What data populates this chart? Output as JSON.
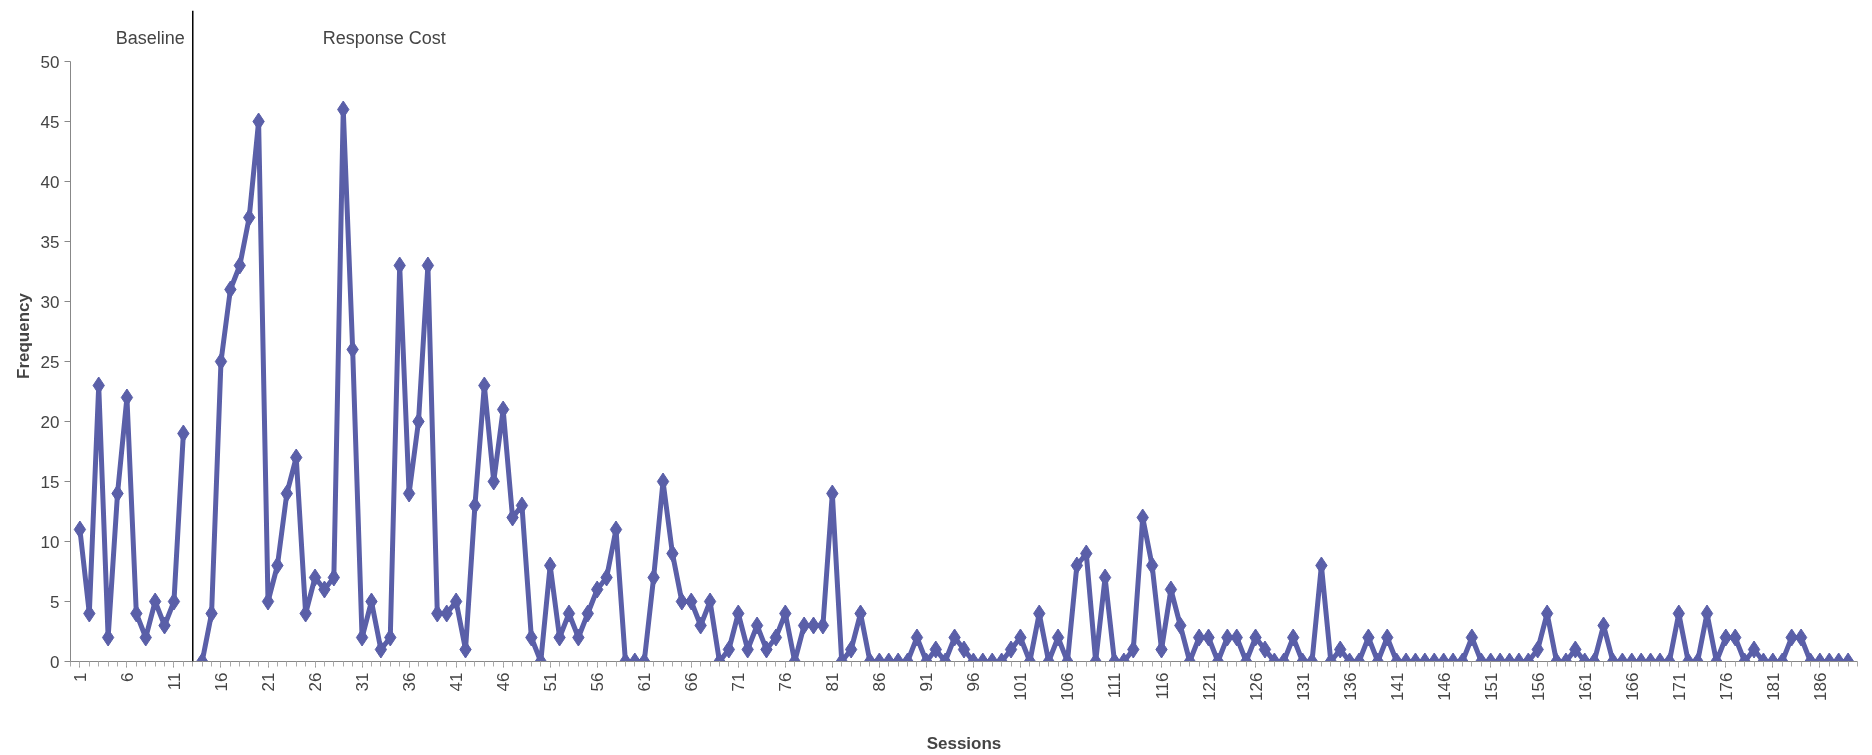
{
  "chart_data": {
    "type": "line",
    "xlabel": "Sessions",
    "ylabel": "Frequency",
    "annotations": [
      "Baseline",
      "Response Cost"
    ],
    "ref_lines": [
      {
        "axis": "x",
        "value": 13,
        "color": "#000000"
      }
    ],
    "xlim": [
      0,
      190
    ],
    "xticks": [
      1,
      6,
      11,
      16,
      21,
      26,
      31,
      36,
      41,
      46,
      51,
      56,
      61,
      66,
      71,
      76,
      81,
      86,
      91,
      96,
      101,
      106,
      111,
      116,
      121,
      126,
      131,
      136,
      141,
      146,
      151,
      156,
      161,
      166,
      171,
      176,
      181,
      186
    ],
    "ylim": [
      0,
      50
    ],
    "yticks": [
      0,
      5,
      10,
      15,
      20,
      25,
      30,
      35,
      40,
      45,
      50
    ],
    "grid": false,
    "marker": "diamond",
    "line_style": "solid",
    "x": [
      1,
      2,
      3,
      4,
      5,
      6,
      7,
      8,
      9,
      10,
      11,
      12,
      13,
      14,
      15,
      16,
      17,
      18,
      19,
      20,
      21,
      22,
      23,
      24,
      25,
      26,
      27,
      28,
      29,
      30,
      31,
      32,
      33,
      34,
      35,
      36,
      37,
      38,
      39,
      40,
      41,
      42,
      43,
      44,
      45,
      46,
      47,
      48,
      49,
      50,
      51,
      52,
      53,
      54,
      55,
      56,
      57,
      58,
      59,
      60,
      61,
      62,
      63,
      64,
      65,
      66,
      67,
      68,
      69,
      70,
      71,
      72,
      73,
      74,
      75,
      76,
      77,
      78,
      79,
      80,
      81,
      82,
      83,
      84,
      85,
      86,
      87,
      88,
      89,
      90,
      91,
      92,
      93,
      94,
      95,
      96,
      97,
      98,
      99,
      100,
      101,
      102,
      103,
      104,
      105,
      106,
      107,
      108,
      109,
      110,
      111,
      112,
      113,
      114,
      115,
      116,
      117,
      118,
      119,
      120,
      121,
      122,
      123,
      124,
      125,
      126,
      127,
      128,
      129,
      130,
      131,
      132,
      133,
      134,
      135,
      136,
      137,
      138,
      139,
      140,
      141,
      142,
      143,
      144,
      145,
      146,
      147,
      148,
      149,
      150,
      151,
      152,
      153,
      154,
      155,
      156,
      157,
      158,
      159,
      160,
      161,
      162,
      163,
      164,
      165,
      166,
      167,
      168,
      169,
      170,
      171,
      172,
      173,
      174,
      175,
      176,
      177,
      178,
      179,
      180,
      181,
      182,
      183,
      184,
      185,
      186,
      187,
      188,
      189
    ],
    "series": [
      {
        "color": "#5a5fa8",
        "values": [
          11,
          4,
          23,
          2,
          14,
          22,
          4,
          2,
          5,
          3,
          5,
          19,
          null,
          0,
          4,
          25,
          31,
          33,
          37,
          45,
          5,
          8,
          14,
          17,
          4,
          7,
          6,
          7,
          46,
          26,
          2,
          5,
          1,
          2,
          33,
          14,
          20,
          33,
          4,
          4,
          5,
          1,
          13,
          23,
          15,
          21,
          12,
          13,
          2,
          0,
          8,
          2,
          4,
          2,
          4,
          6,
          7,
          11,
          0,
          0,
          0,
          7,
          15,
          9,
          5,
          5,
          3,
          5,
          0,
          1,
          4,
          1,
          3,
          1,
          2,
          4,
          0,
          3,
          3,
          3,
          14,
          0,
          1,
          4,
          0,
          0,
          0,
          0,
          0,
          2,
          0,
          1,
          0,
          2,
          1,
          0,
          0,
          0,
          0,
          1,
          2,
          0,
          4,
          0,
          2,
          0,
          8,
          9,
          0,
          7,
          0,
          0,
          1,
          12,
          8,
          1,
          6,
          3,
          0,
          2,
          2,
          0,
          2,
          2,
          0,
          2,
          1,
          0,
          0,
          2,
          0,
          0,
          8,
          0,
          1,
          0,
          0,
          2,
          0,
          2,
          0,
          0,
          0,
          0,
          0,
          0,
          0,
          0,
          2,
          0,
          0,
          0,
          0,
          0,
          0,
          1,
          4,
          0,
          0,
          1,
          0,
          0,
          3,
          0,
          0,
          0,
          0,
          0,
          0,
          0,
          4,
          0,
          0,
          4,
          0,
          2,
          2,
          0,
          1,
          0,
          0,
          0,
          2,
          2,
          0,
          0,
          0,
          0,
          0
        ]
      }
    ]
  }
}
